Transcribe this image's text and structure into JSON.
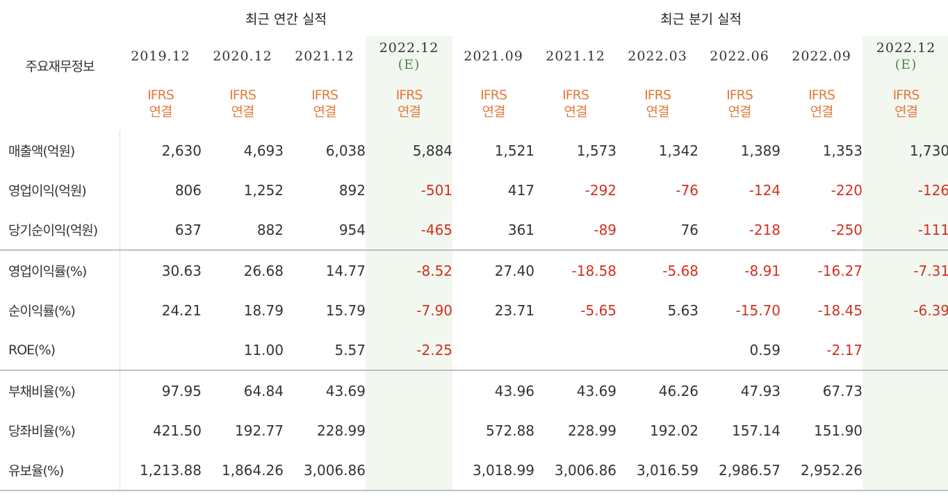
{
  "header": {
    "label": "주요재무정보",
    "annual_title": "최근 연간 실적",
    "quarter_title": "최근 분기 실적",
    "ifrs_line1": "IFRS",
    "ifrs_line2": "연결",
    "est_mark": "(E)"
  },
  "columns": [
    {
      "date": "2019.12",
      "est": false
    },
    {
      "date": "2020.12",
      "est": false
    },
    {
      "date": "2021.12",
      "est": false
    },
    {
      "date": "2022.12",
      "est": true
    },
    {
      "date": "2021.09",
      "est": false
    },
    {
      "date": "2021.12",
      "est": false
    },
    {
      "date": "2022.03",
      "est": false
    },
    {
      "date": "2022.06",
      "est": false
    },
    {
      "date": "2022.09",
      "est": false
    },
    {
      "date": "2022.12",
      "est": true
    }
  ],
  "rows": [
    {
      "label": "매출액(억원)",
      "values": [
        "2,630",
        "4,693",
        "6,038",
        "5,884",
        "1,521",
        "1,573",
        "1,342",
        "1,389",
        "1,353",
        "1,730"
      ]
    },
    {
      "label": "영업이익(억원)",
      "values": [
        "806",
        "1,252",
        "892",
        "-501",
        "417",
        "-292",
        "-76",
        "-124",
        "-220",
        "-126"
      ]
    },
    {
      "label": "당기순이익(억원)",
      "values": [
        "637",
        "882",
        "954",
        "-465",
        "361",
        "-89",
        "76",
        "-218",
        "-250",
        "-111"
      ]
    },
    {
      "label": "영업이익률(%)",
      "values": [
        "30.63",
        "26.68",
        "14.77",
        "-8.52",
        "27.40",
        "-18.58",
        "-5.68",
        "-8.91",
        "-16.27",
        "-7.31"
      ]
    },
    {
      "label": "순이익률(%)",
      "values": [
        "24.21",
        "18.79",
        "15.79",
        "-7.90",
        "23.71",
        "-5.65",
        "5.63",
        "-15.70",
        "-18.45",
        "-6.39"
      ]
    },
    {
      "label": "ROE(%)",
      "values": [
        "",
        "11.00",
        "5.57",
        "-2.25",
        "",
        "",
        "",
        "0.59",
        "-2.17",
        ""
      ]
    },
    {
      "label": "부채비율(%)",
      "values": [
        "97.95",
        "64.84",
        "43.69",
        "",
        "43.96",
        "43.69",
        "46.26",
        "47.93",
        "67.73",
        ""
      ]
    },
    {
      "label": "당좌비율(%)",
      "values": [
        "421.50",
        "192.77",
        "228.99",
        "",
        "572.88",
        "228.99",
        "192.02",
        "157.14",
        "151.90",
        ""
      ]
    },
    {
      "label": "유보율(%)",
      "values": [
        "1,213.88",
        "1,864.26",
        "3,006.86",
        "",
        "3,018.99",
        "3,006.86",
        "3,016.59",
        "2,986.57",
        "2,952.26",
        ""
      ]
    }
  ],
  "colors": {
    "negative": "#d0301f",
    "ifrs": "#e07a3a",
    "estimate": "#4d8a4a",
    "estimate_bg": "#f2f7f0"
  }
}
